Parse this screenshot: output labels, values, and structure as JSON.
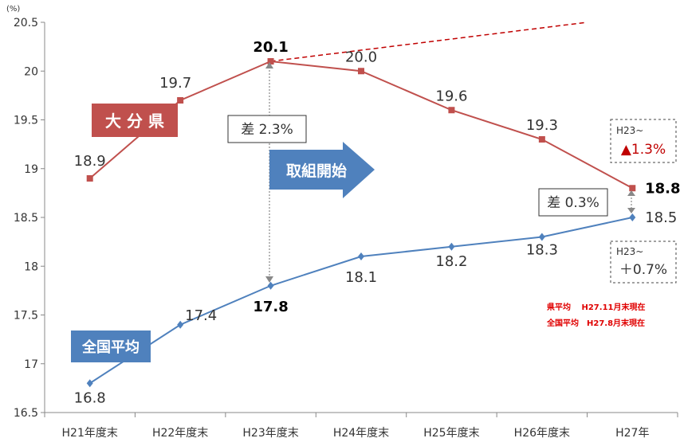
{
  "chart_data": {
    "type": "line",
    "y_unit": "(%)",
    "ylim": [
      16.5,
      20.5
    ],
    "yticks": [
      "16.5",
      "17",
      "17.5",
      "18",
      "18.5",
      "19",
      "19.5",
      "20",
      "20.5"
    ],
    "categories": [
      "H21年度末",
      "H22年度末",
      "H23年度末",
      "H24年度末",
      "H25年度末",
      "H26年度末",
      "H27年"
    ],
    "grid": false,
    "series": [
      {
        "name": "大 分 県",
        "color": "#C0504D",
        "values": [
          18.9,
          19.7,
          20.1,
          20.0,
          19.6,
          19.3,
          18.8
        ],
        "labels": [
          "18.9",
          "19.7",
          "20.1",
          "20.0",
          "19.6",
          "19.3",
          "18.8"
        ]
      },
      {
        "name": "全国平均",
        "color": "#4F81BD",
        "values": [
          16.8,
          17.4,
          17.8,
          18.1,
          18.2,
          18.3,
          18.5
        ],
        "labels": [
          "16.8",
          "17.4",
          "17.8",
          "18.1",
          "18.2",
          "18.3",
          "18.5"
        ]
      }
    ],
    "trend_line": {
      "from": [
        2,
        20.1
      ],
      "to": [
        5.5,
        20.5
      ],
      "color": "#C00000"
    },
    "annotations": {
      "gap_2011": "差 2.3%",
      "gap_2015": "差 0.3%",
      "initiative_arrow": "取組開始",
      "pref_change_label": "H23~",
      "pref_change_value": "▲1.3%",
      "nat_change_label": "H23~",
      "nat_change_value": "＋0.7%",
      "note_line1": "県平均　 H27.11月末現在",
      "note_line2": "全国平均　H27.8月末現在"
    }
  }
}
